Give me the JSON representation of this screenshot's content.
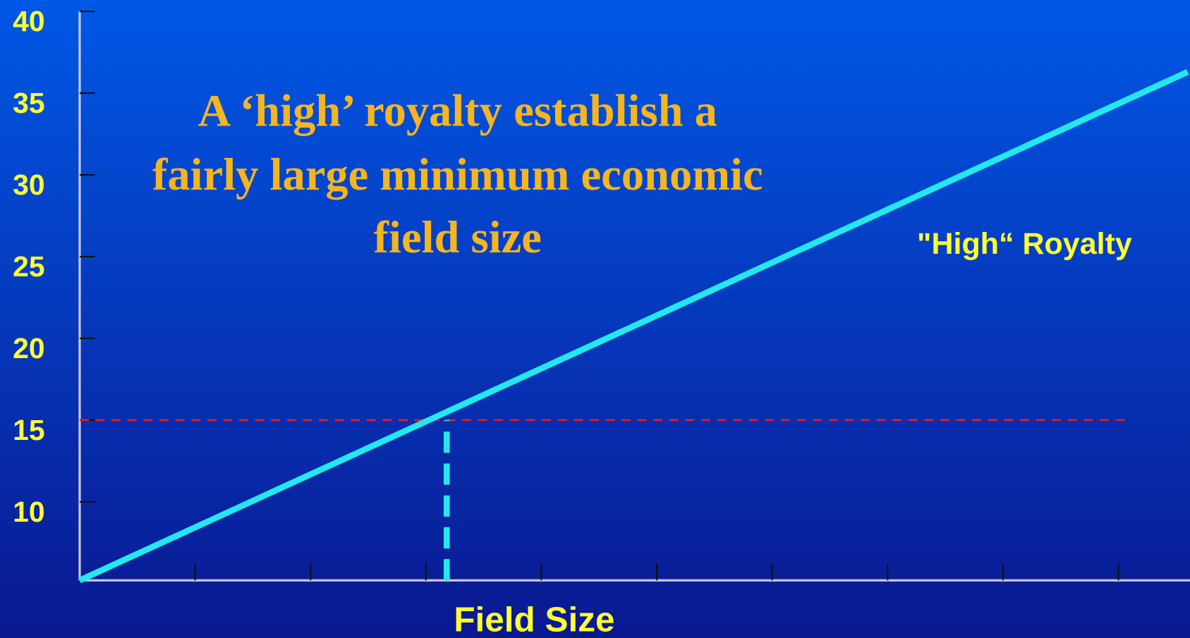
{
  "chart_data": {
    "type": "line",
    "annotation": [
      "A ‘high’ royalty establish a",
      "fairly large minimum economic",
      "field size"
    ],
    "x_label": "Field Size",
    "series": [
      {
        "name": "\"High“ Royalty",
        "color": "#22e8f0",
        "x": [
          0,
          9.6
        ],
        "values": [
          5.2,
          36.3
        ]
      }
    ],
    "reference_lines": [
      {
        "orientation": "horizontal",
        "value": 15,
        "from": 0,
        "to": 9.07,
        "color": "#e02020"
      },
      {
        "orientation": "vertical",
        "value": 3.18,
        "from": 5.2,
        "to": 15,
        "color": "#22e8f0"
      }
    ],
    "xlim": [
      0,
      9.62
    ],
    "xticks": [
      1,
      2,
      3,
      4,
      5,
      6,
      7,
      8,
      9
    ],
    "ylim": [
      5.2,
      40
    ],
    "yticks": [
      10,
      15,
      20,
      25,
      30,
      35,
      40
    ]
  }
}
